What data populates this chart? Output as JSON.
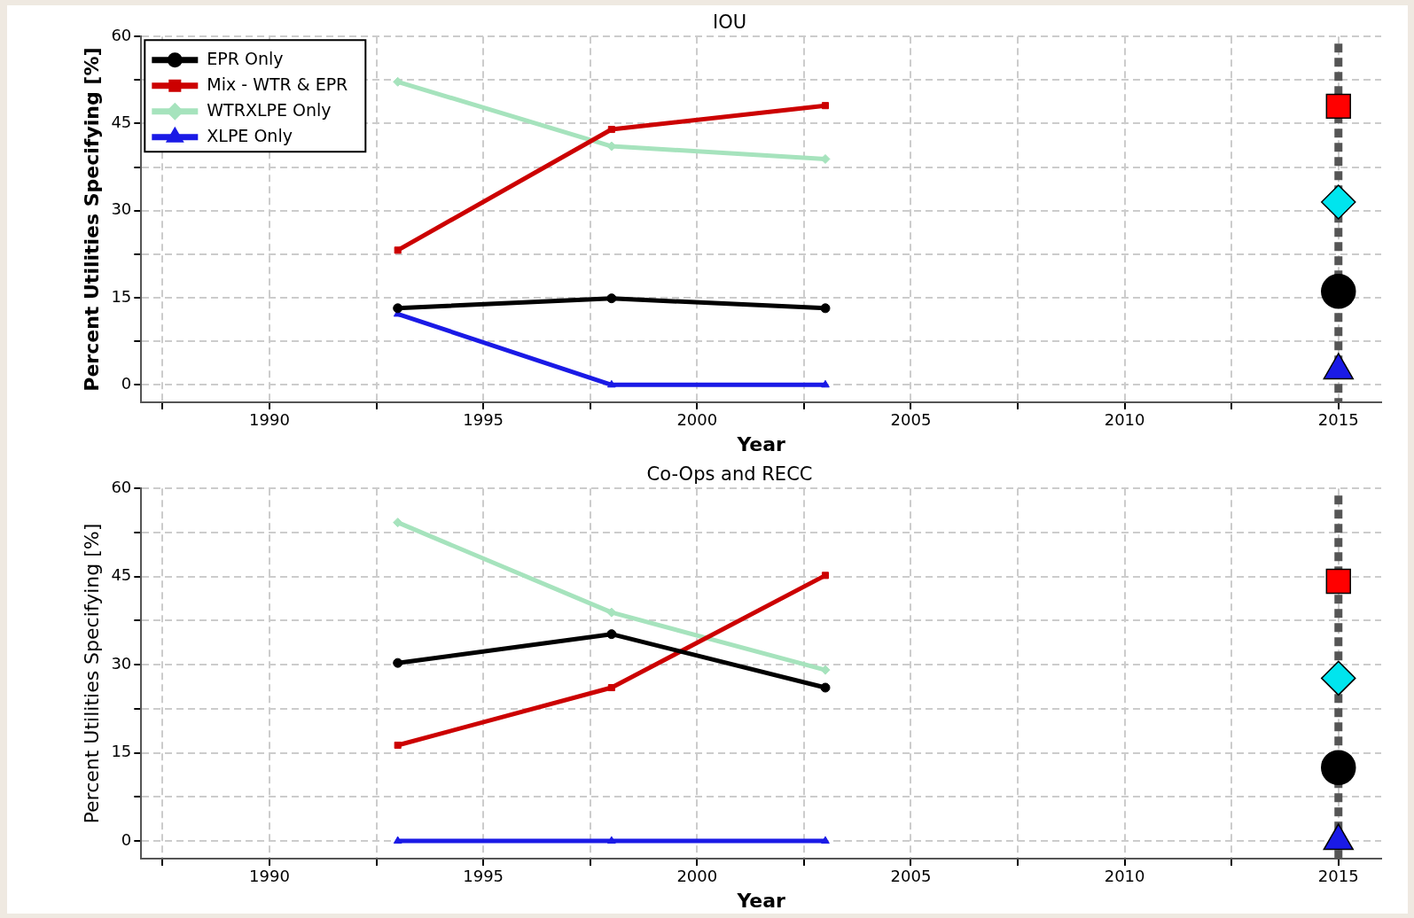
{
  "chart_data": [
    {
      "type": "line",
      "title": "IOU",
      "xlabel": "Year",
      "ylabel": "Percent Utilities Specifying [%]",
      "xlim": [
        1987,
        2016
      ],
      "xticks": [
        {
          "value": 1987.5,
          "label": null
        },
        1990,
        {
          "value": 1992.5,
          "label": null
        },
        1995,
        {
          "value": 1997.5,
          "label": null
        },
        2000,
        {
          "value": 2002.5,
          "label": null
        },
        2005,
        {
          "value": 2007.5,
          "label": null
        },
        2010,
        {
          "value": 2012.5,
          "label": null
        },
        2015
      ],
      "ylim": [
        -3,
        60
      ],
      "yticks": [
        0,
        {
          "value": 7.5,
          "label": null
        },
        15,
        {
          "value": 22.5,
          "label": null
        },
        30,
        {
          "value": 37.5,
          "label": null
        },
        45,
        {
          "value": 52.5,
          "label": null
        },
        60
      ],
      "grid": true,
      "legend": "top left",
      "ref_lines": [
        {
          "axis": "x",
          "value": 2015,
          "color": "#555555",
          "line_style": "dashed"
        }
      ],
      "series": [
        {
          "name": "EPR Only",
          "marker": "circle",
          "color": "#000000",
          "x": [
            1993,
            1998,
            2003
          ],
          "values": [
            13.2,
            14.9,
            13.2
          ]
        },
        {
          "name": "Mix - WTR & EPR",
          "marker": "square",
          "color": "#cc0000",
          "x": [
            1993,
            1998,
            2003
          ],
          "values": [
            23.2,
            44.0,
            48.1
          ]
        },
        {
          "name": "WTRXLPE Only",
          "marker": "diamond",
          "color": "#a6e3bd",
          "x": [
            1993,
            1998,
            2003
          ],
          "values": [
            52.2,
            41.1,
            38.9
          ]
        },
        {
          "name": "XLPE Only",
          "marker": "triangle",
          "color": "#1a1ae6",
          "x": [
            1993,
            1998,
            2003
          ],
          "values": [
            12.2,
            0,
            0
          ]
        },
        {
          "type": "scatter",
          "marker": "square",
          "color": "#ff0000",
          "x": [
            2015
          ],
          "values": [
            48
          ]
        },
        {
          "type": "scatter",
          "marker": "diamond",
          "color": "#00e5ee",
          "x": [
            2015
          ],
          "values": [
            31.5
          ]
        },
        {
          "type": "scatter",
          "marker": "circle",
          "color": "#000000",
          "x": [
            2015
          ],
          "values": [
            16.1
          ]
        },
        {
          "type": "scatter",
          "marker": "triangle",
          "color": "#1a1ae6",
          "x": [
            2015
          ],
          "values": [
            2.5
          ]
        }
      ]
    },
    {
      "type": "line",
      "title": "Co-Ops and RECC",
      "xlabel": "Year",
      "ylabel": "Percent Utilities Specifying [%]",
      "xlim": [
        1987,
        2016
      ],
      "xticks": [
        {
          "value": 1987.5,
          "label": null
        },
        1990,
        {
          "value": 1992.5,
          "label": null
        },
        1995,
        {
          "value": 1997.5,
          "label": null
        },
        2000,
        {
          "value": 2002.5,
          "label": null
        },
        2005,
        {
          "value": 2007.5,
          "label": null
        },
        2010,
        {
          "value": 2012.5,
          "label": null
        },
        2015
      ],
      "ylim": [
        -3,
        60
      ],
      "yticks": [
        0,
        {
          "value": 7.5,
          "label": null
        },
        15,
        {
          "value": 22.5,
          "label": null
        },
        30,
        {
          "value": 37.5,
          "label": null
        },
        45,
        {
          "value": 52.5,
          "label": null
        },
        60
      ],
      "grid": true,
      "ref_lines": [
        {
          "axis": "x",
          "value": 2015,
          "color": "#555555",
          "line_style": "dashed"
        }
      ],
      "series": [
        {
          "marker": "circle",
          "color": "#000000",
          "x": [
            1993,
            1998,
            2003
          ],
          "values": [
            30.3,
            35.2,
            26.1
          ]
        },
        {
          "marker": "square",
          "color": "#cc0000",
          "x": [
            1993,
            1998,
            2003
          ],
          "values": [
            16.3,
            26.1,
            45.2
          ]
        },
        {
          "marker": "diamond",
          "color": "#a6e3bd",
          "x": [
            1993,
            1998,
            2003
          ],
          "values": [
            54.2,
            38.9,
            29.1
          ]
        },
        {
          "marker": "triangle",
          "color": "#1a1ae6",
          "x": [
            1993,
            1998,
            2003
          ],
          "values": [
            0,
            0,
            0
          ]
        },
        {
          "type": "scatter",
          "marker": "square",
          "color": "#ff0000",
          "x": [
            2015
          ],
          "values": [
            44.2
          ]
        },
        {
          "type": "scatter",
          "marker": "diamond",
          "color": "#00e5ee",
          "x": [
            2015
          ],
          "values": [
            27.7
          ]
        },
        {
          "type": "scatter",
          "marker": "circle",
          "color": "#000000",
          "x": [
            2015
          ],
          "values": [
            12.5
          ]
        },
        {
          "type": "scatter",
          "marker": "triangle",
          "color": "#1a1ae6",
          "x": [
            2015
          ],
          "values": [
            0
          ]
        }
      ]
    }
  ]
}
